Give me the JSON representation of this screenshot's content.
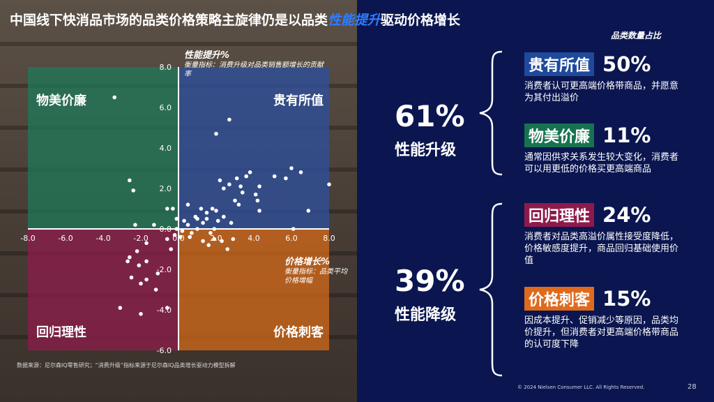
{
  "title": {
    "prefix": "中国线下快消品市场的品类价格策略主旋律仍是以品类",
    "highlight": "性能提升",
    "suffix": "驱动价格增长"
  },
  "colors": {
    "background": "#0b1650",
    "accent_blue": "#2f7dff",
    "q_top_right": "#2e4f9a",
    "q_top_left": "#1e7a5a",
    "q_bottom_left": "#8a1e4a",
    "q_bottom_right": "#d4691a",
    "tag_gui_you_suo_zhi": "#1f4a9b",
    "tag_wu_mei_jia_lian": "#17734f",
    "tag_hui_gui_li_xing": "#8e1a4d",
    "tag_jia_ge_ci_ke": "#e06a1c"
  },
  "chart_data": {
    "type": "scatter",
    "title": "",
    "xlabel": "价格增长%",
    "xlabel_note": "衡量指标：品类平均价格增幅",
    "ylabel": "性能提升%",
    "ylabel_note": "衡量指标：消费升级对品类销售额增长的贡献率",
    "xlim": [
      -8,
      8
    ],
    "ylim": [
      -6,
      8
    ],
    "x_ticks": [
      "-8.0",
      "-6.0",
      "-4.0",
      "-2.0",
      "0.0",
      "2.0",
      "4.0",
      "6.0",
      "8.0"
    ],
    "y_ticks": [
      "8.0",
      "6.0",
      "4.0",
      "2.0",
      "0.0",
      "-2.0",
      "-4.0",
      "-6.0"
    ],
    "grid": false,
    "quadrants": {
      "top_left": "物美价廉",
      "top_right": "贵有所值",
      "bottom_left": "回归理性",
      "bottom_right": "价格刺客"
    },
    "points": [
      [
        -3.4,
        6.5
      ],
      [
        2.7,
        5.4
      ],
      [
        -2.6,
        2.4
      ],
      [
        -2.4,
        1.9
      ],
      [
        -0.3,
        1.0
      ],
      [
        -0.6,
        1.0
      ],
      [
        -2.3,
        0.2
      ],
      [
        -1.3,
        0.2
      ],
      [
        -0.1,
        0.5
      ],
      [
        0.5,
        1.2
      ],
      [
        1.2,
        1.0
      ],
      [
        1.5,
        0.8
      ],
      [
        1.8,
        1.0
      ],
      [
        2.0,
        0.9
      ],
      [
        2.1,
        0.4
      ],
      [
        1.5,
        0.5
      ],
      [
        1.0,
        0.5
      ],
      [
        0.5,
        0.2
      ],
      [
        1.0,
        0.0
      ],
      [
        1.9,
        0.0
      ],
      [
        2.4,
        0.6
      ],
      [
        2.8,
        0.3
      ],
      [
        3.1,
        2.5
      ],
      [
        3.3,
        2.1
      ],
      [
        3.6,
        2.6
      ],
      [
        3.8,
        2.8
      ],
      [
        4.1,
        1.7
      ],
      [
        4.3,
        2.1
      ],
      [
        4.2,
        1.4
      ],
      [
        3.2,
        1.2
      ],
      [
        4.3,
        0.9
      ],
      [
        5.1,
        2.6
      ],
      [
        5.7,
        2.5
      ],
      [
        6.0,
        3.0
      ],
      [
        6.5,
        2.8
      ],
      [
        6.9,
        0.9
      ],
      [
        8.0,
        2.2
      ],
      [
        6.1,
        0.0
      ],
      [
        2.0,
        4.7
      ],
      [
        2.2,
        2.4
      ],
      [
        2.4,
        2.0
      ],
      [
        3.0,
        1.4
      ],
      [
        3.4,
        1.8
      ],
      [
        2.7,
        2.2
      ],
      [
        0.6,
        -0.4
      ],
      [
        1.3,
        -0.6
      ],
      [
        1.6,
        -0.8
      ],
      [
        1.9,
        -0.5
      ],
      [
        2.3,
        -0.6
      ],
      [
        2.9,
        -0.5
      ],
      [
        -0.6,
        -0.5
      ],
      [
        -0.4,
        -1.0
      ],
      [
        -1.7,
        -0.7
      ],
      [
        -2.2,
        -1.1
      ],
      [
        -2.6,
        -1.4
      ],
      [
        -2.1,
        -1.8
      ],
      [
        -1.7,
        -1.6
      ],
      [
        -2.7,
        -1.6
      ],
      [
        -2.5,
        -2.4
      ],
      [
        -1.7,
        -2.5
      ],
      [
        -1.1,
        -2.2
      ],
      [
        -2.0,
        -2.7
      ],
      [
        -1.2,
        -3.0
      ],
      [
        -3.1,
        -3.9
      ],
      [
        -2.0,
        -4.2
      ],
      [
        -0.6,
        -3.9
      ],
      [
        0.1,
        -0.4
      ],
      [
        0.2,
        -0.1
      ],
      [
        -0.1,
        0.0
      ],
      [
        0.7,
        -0.2
      ],
      [
        0.9,
        0.6
      ],
      [
        1.3,
        0.3
      ],
      [
        1.7,
        -0.2
      ],
      [
        0.3,
        0.4
      ],
      [
        -0.2,
        -0.3
      ],
      [
        2.6,
        -1.0
      ]
    ]
  },
  "source_note": "数据来源：尼尔森IQ零售研究；“消费升级”指标来源于尼尔森IQ品类增长驱动力模型拆解",
  "share_heading": "品类数量占比",
  "groups": {
    "upgrade": {
      "percent": "61%",
      "label": "性能升级"
    },
    "downgrade": {
      "percent": "39%",
      "label": "性能降级"
    }
  },
  "categories": [
    {
      "name": "贵有所值",
      "percent": "50%",
      "desc": "消费者认可更高端价格带商品，并愿意为其付出溢价"
    },
    {
      "name": "物美价廉",
      "percent": "11%",
      "desc": "通常因供求关系发生较大变化，消费者可以用更低的价格买更高端商品"
    },
    {
      "name": "回归理性",
      "percent": "24%",
      "desc": "消费者对品类高溢价属性接受度降低，价格敏感度提升，商品回归基础使用价值"
    },
    {
      "name": "价格刺客",
      "percent": "15%",
      "desc": "因成本提升、促销减少等原因，品类均价提升，但消费者对更高端价格带商品的认可度下降"
    }
  ],
  "footer": "© 2024 Nielsen Consumer LLC. All Rights Reserved.",
  "page_number": "28"
}
